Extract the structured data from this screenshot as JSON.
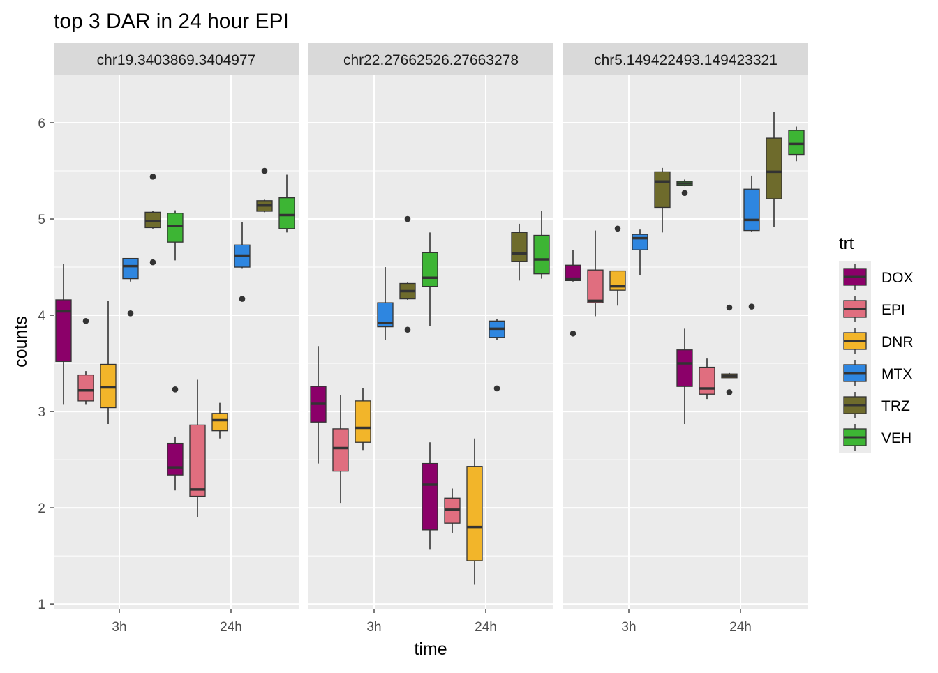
{
  "chart_data": {
    "type": "boxplot",
    "title": "top 3 DAR in 24 hour EPI",
    "xlabel": "time",
    "ylabel": "counts",
    "ylim": [
      0.95,
      6.5
    ],
    "y_ticks": [
      1,
      2,
      3,
      4,
      5,
      6
    ],
    "x_categories": [
      "3h",
      "24h"
    ],
    "grid": true,
    "legend": {
      "title": "trt",
      "position": "right",
      "entries": [
        {
          "name": "DOX",
          "color": "#8B0069"
        },
        {
          "name": "EPI",
          "color": "#E06E7F"
        },
        {
          "name": "DNR",
          "color": "#F2B52A"
        },
        {
          "name": "MTX",
          "color": "#2E86E0"
        },
        {
          "name": "TRZ",
          "color": "#6E6B2C"
        },
        {
          "name": "VEH",
          "color": "#3DB534"
        }
      ]
    },
    "panels": [
      {
        "label": "chr19.3403869.3404977",
        "groups": [
          {
            "time": "3h",
            "boxes": [
              {
                "trt": "DOX",
                "min": 3.07,
                "q1": 3.52,
                "median": 4.04,
                "q3": 4.16,
                "max": 4.53,
                "outliers": []
              },
              {
                "trt": "EPI",
                "min": 3.07,
                "q1": 3.11,
                "median": 3.22,
                "q3": 3.38,
                "max": 3.42,
                "outliers": [
                  3.94
                ]
              },
              {
                "trt": "DNR",
                "min": 2.87,
                "q1": 3.04,
                "median": 3.25,
                "q3": 3.49,
                "max": 4.15,
                "outliers": []
              },
              {
                "trt": "MTX",
                "min": 4.35,
                "q1": 4.38,
                "median": 4.51,
                "q3": 4.59,
                "max": 4.59,
                "outliers": [
                  4.02
                ]
              },
              {
                "trt": "TRZ",
                "min": 4.9,
                "q1": 4.91,
                "median": 4.98,
                "q3": 5.07,
                "max": 5.08,
                "outliers": [
                  5.44,
                  4.55
                ]
              },
              {
                "trt": "VEH",
                "min": 4.57,
                "q1": 4.76,
                "median": 4.93,
                "q3": 5.06,
                "max": 5.09,
                "outliers": []
              }
            ]
          },
          {
            "time": "24h",
            "boxes": [
              {
                "trt": "DOX",
                "min": 2.18,
                "q1": 2.34,
                "median": 2.42,
                "q3": 2.67,
                "max": 2.74,
                "outliers": [
                  3.23
                ]
              },
              {
                "trt": "EPI",
                "min": 1.9,
                "q1": 2.12,
                "median": 2.19,
                "q3": 2.86,
                "max": 3.33,
                "outliers": []
              },
              {
                "trt": "DNR",
                "min": 2.72,
                "q1": 2.8,
                "median": 2.91,
                "q3": 2.98,
                "max": 3.09,
                "outliers": []
              },
              {
                "trt": "MTX",
                "min": 4.49,
                "q1": 4.5,
                "median": 4.62,
                "q3": 4.73,
                "max": 4.97,
                "outliers": [
                  4.17
                ]
              },
              {
                "trt": "TRZ",
                "min": 5.07,
                "q1": 5.08,
                "median": 5.14,
                "q3": 5.19,
                "max": 5.2,
                "outliers": [
                  5.5
                ]
              },
              {
                "trt": "VEH",
                "min": 4.86,
                "q1": 4.9,
                "median": 5.04,
                "q3": 5.22,
                "max": 5.46,
                "outliers": []
              }
            ]
          }
        ]
      },
      {
        "label": "chr22.27662526.27663278",
        "groups": [
          {
            "time": "3h",
            "boxes": [
              {
                "trt": "DOX",
                "min": 2.46,
                "q1": 2.89,
                "median": 3.08,
                "q3": 3.26,
                "max": 3.68,
                "outliers": []
              },
              {
                "trt": "EPI",
                "min": 2.05,
                "q1": 2.38,
                "median": 2.62,
                "q3": 2.82,
                "max": 3.17,
                "outliers": []
              },
              {
                "trt": "DNR",
                "min": 2.6,
                "q1": 2.68,
                "median": 2.83,
                "q3": 3.11,
                "max": 3.24,
                "outliers": []
              },
              {
                "trt": "MTX",
                "min": 3.74,
                "q1": 3.88,
                "median": 3.92,
                "q3": 4.13,
                "max": 4.5,
                "outliers": []
              },
              {
                "trt": "TRZ",
                "min": 4.16,
                "q1": 4.17,
                "median": 4.25,
                "q3": 4.33,
                "max": 4.34,
                "outliers": [
                  5.0,
                  3.85
                ]
              },
              {
                "trt": "VEH",
                "min": 3.89,
                "q1": 4.3,
                "median": 4.39,
                "q3": 4.65,
                "max": 4.86,
                "outliers": []
              }
            ]
          },
          {
            "time": "24h",
            "boxes": [
              {
                "trt": "DOX",
                "min": 1.57,
                "q1": 1.77,
                "median": 2.24,
                "q3": 2.46,
                "max": 2.68,
                "outliers": []
              },
              {
                "trt": "EPI",
                "min": 1.74,
                "q1": 1.84,
                "median": 1.98,
                "q3": 2.1,
                "max": 2.2,
                "outliers": []
              },
              {
                "trt": "DNR",
                "min": 1.2,
                "q1": 1.45,
                "median": 1.8,
                "q3": 2.43,
                "max": 2.72,
                "outliers": []
              },
              {
                "trt": "MTX",
                "min": 3.74,
                "q1": 3.77,
                "median": 3.86,
                "q3": 3.94,
                "max": 3.96,
                "outliers": [
                  3.24
                ]
              },
              {
                "trt": "TRZ",
                "min": 4.36,
                "q1": 4.56,
                "median": 4.64,
                "q3": 4.86,
                "max": 4.95,
                "outliers": []
              },
              {
                "trt": "VEH",
                "min": 4.38,
                "q1": 4.43,
                "median": 4.58,
                "q3": 4.83,
                "max": 5.08,
                "outliers": []
              }
            ]
          }
        ]
      },
      {
        "label": "chr5.149422493.149423321",
        "groups": [
          {
            "time": "3h",
            "boxes": [
              {
                "trt": "DOX",
                "min": 4.35,
                "q1": 4.36,
                "median": 4.38,
                "q3": 4.52,
                "max": 4.68,
                "outliers": [
                  3.81
                ]
              },
              {
                "trt": "EPI",
                "min": 3.99,
                "q1": 4.13,
                "median": 4.15,
                "q3": 4.47,
                "max": 4.88,
                "outliers": []
              },
              {
                "trt": "DNR",
                "min": 4.1,
                "q1": 4.26,
                "median": 4.3,
                "q3": 4.46,
                "max": 4.46,
                "outliers": [
                  4.9
                ]
              },
              {
                "trt": "MTX",
                "min": 4.42,
                "q1": 4.68,
                "median": 4.8,
                "q3": 4.84,
                "max": 4.89,
                "outliers": []
              },
              {
                "trt": "TRZ",
                "min": 4.86,
                "q1": 5.12,
                "median": 5.39,
                "q3": 5.49,
                "max": 5.53,
                "outliers": []
              },
              {
                "trt": "VEH",
                "min": 5.34,
                "q1": 5.35,
                "median": 5.37,
                "q3": 5.39,
                "max": 5.41,
                "outliers": [
                  5.27
                ]
              }
            ]
          },
          {
            "time": "24h",
            "boxes": [
              {
                "trt": "DOX",
                "min": 2.87,
                "q1": 3.26,
                "median": 3.5,
                "q3": 3.64,
                "max": 3.86,
                "outliers": []
              },
              {
                "trt": "EPI",
                "min": 3.13,
                "q1": 3.18,
                "median": 3.24,
                "q3": 3.46,
                "max": 3.55,
                "outliers": []
              },
              {
                "trt": "DNR",
                "min": 3.35,
                "q1": 3.35,
                "median": 3.37,
                "q3": 3.39,
                "max": 3.4,
                "outliers": [
                  4.08,
                  3.2
                ]
              },
              {
                "trt": "MTX",
                "min": 4.87,
                "q1": 4.88,
                "median": 4.99,
                "q3": 5.31,
                "max": 5.45,
                "outliers": [
                  4.09
                ]
              },
              {
                "trt": "TRZ",
                "min": 4.92,
                "q1": 5.21,
                "median": 5.49,
                "q3": 5.84,
                "max": 6.11,
                "outliers": []
              },
              {
                "trt": "VEH",
                "min": 5.6,
                "q1": 5.67,
                "median": 5.78,
                "q3": 5.92,
                "max": 5.96,
                "outliers": []
              }
            ]
          }
        ]
      }
    ]
  }
}
